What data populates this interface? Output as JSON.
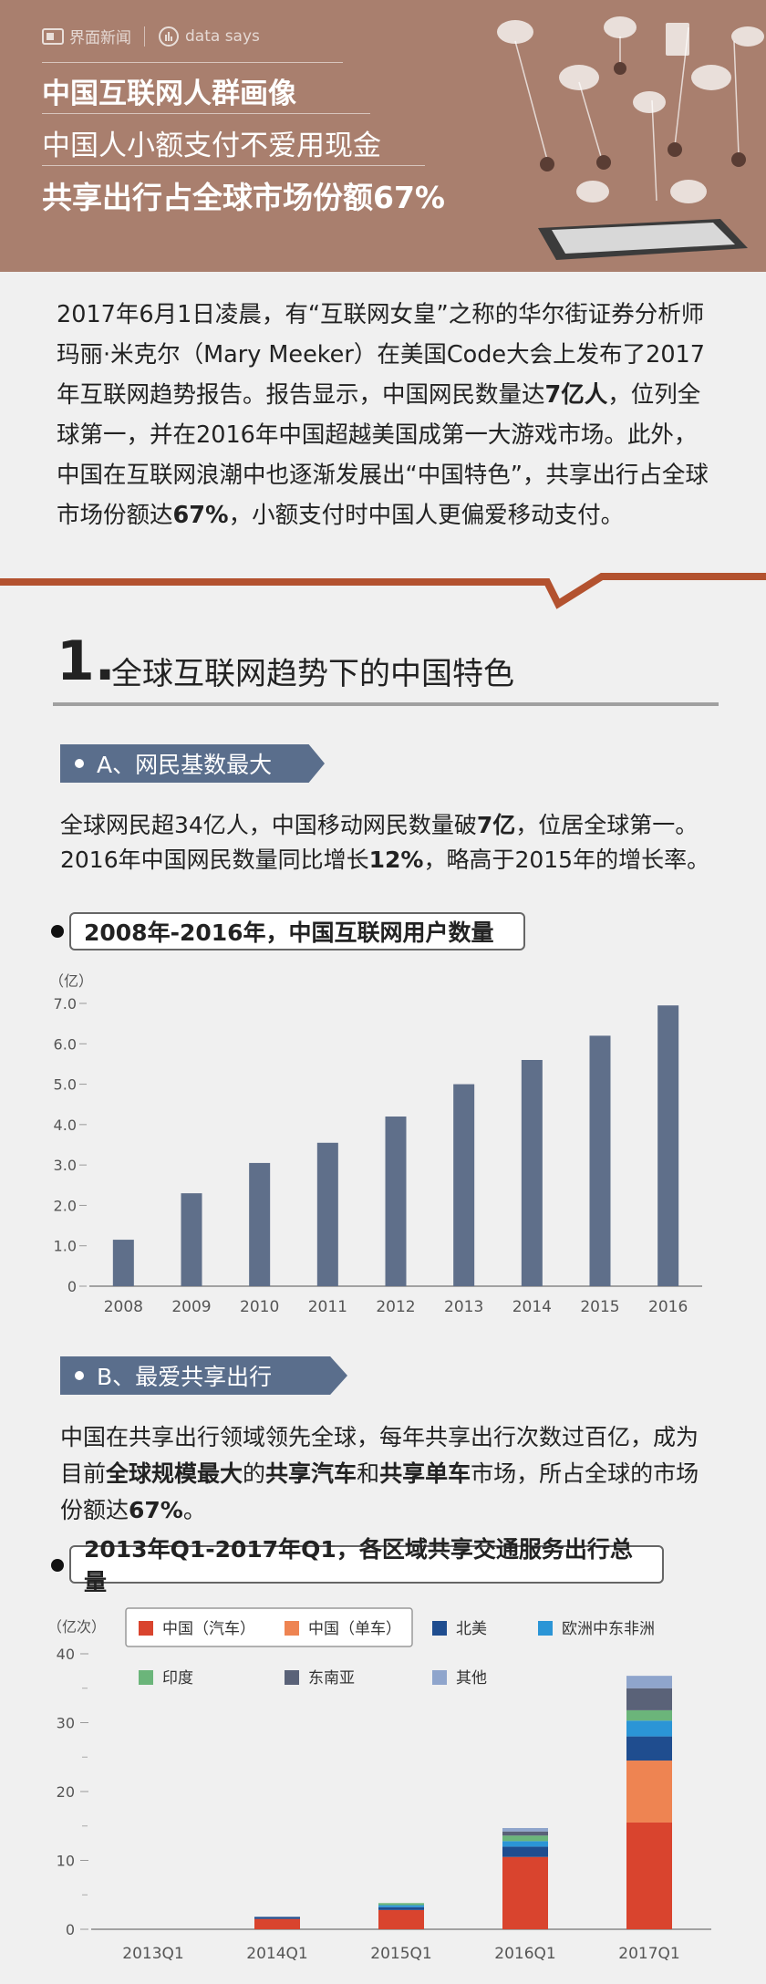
{
  "header": {
    "logo_text": "界面新闻",
    "logo2_text": "data says",
    "line1": "中国互联网人群画像",
    "line2": "中国人小额支付不爱用现金",
    "line3": "共享出行占全球市场份额67%"
  },
  "intro": {
    "p1": "2017年6月1日凌晨，有“互联网女皇”之称的华尔街证券分析师玛丽·米克尔（Mary Meeker）在美国Code大会上发布了2017年互联网趋势报告。报告显示，中国网民数量达",
    "b1": "7亿人",
    "p2": "，位列全球第一，并在2016年中国超越美国成第一大游戏市场。此外，中国在互联网浪潮中也逐渐发展出“中国特色”，共享出行占全球市场份额达",
    "b2": "67%",
    "p3": "，小额支付时中国人更偏爱移动支付。"
  },
  "section1": {
    "number": "1.",
    "title": "全球互联网趋势下的中国特色"
  },
  "partA": {
    "tag": "A、网民基数最大",
    "t1": "全球网民超34亿人，中国移动网民数量破",
    "b1": "7亿",
    "t2": "，位居全球第一。2016年中国网民数量同比增长",
    "b2": "12%",
    "t3": "，略高于2015年的增长率。"
  },
  "partB": {
    "tag": "B、最爱共享出行",
    "t1": "中国在共享出行领域领先全球，每年共享出行次数过百亿，成为目前",
    "b1": "全球规模最大",
    "t2": "的",
    "b2": "共享汽车",
    "t3": "和",
    "b3": "共享单车",
    "t4": "市场，所占全球的市场份额达",
    "b4": "67%",
    "t5": "。"
  },
  "chart_data": [
    {
      "type": "bar",
      "title": "2008年-2016年，中国互联网用户数量",
      "ylabel": "（亿）",
      "categories": [
        "2008",
        "2009",
        "2010",
        "2011",
        "2012",
        "2013",
        "2014",
        "2015",
        "2016"
      ],
      "values": [
        1.15,
        2.3,
        3.05,
        3.55,
        4.2,
        5.0,
        5.6,
        6.2,
        6.95
      ],
      "ylim": [
        0,
        7
      ],
      "yticks": [
        "0",
        "1.0",
        "2.0",
        "3.0",
        "4.0",
        "5.0",
        "6.0",
        "7.0"
      ],
      "color": "#5f6f8a"
    },
    {
      "type": "bar",
      "stacked": true,
      "title": "2013年Q1-2017年Q1，各区域共享交通服务出行总量",
      "ylabel": "（亿次）",
      "categories": [
        "2013Q1",
        "2014Q1",
        "2015Q1",
        "2016Q1",
        "2017Q1"
      ],
      "ylim": [
        0,
        40
      ],
      "yticks": [
        "0",
        "10",
        "20",
        "30",
        "40"
      ],
      "series": [
        {
          "name": "中国（汽车）",
          "color": "#d9442e",
          "values": [
            0,
            1.5,
            2.8,
            10.5,
            15.5
          ]
        },
        {
          "name": "中国（单车）",
          "color": "#ee8452",
          "values": [
            0,
            0,
            0,
            0,
            9
          ]
        },
        {
          "name": "北美",
          "color": "#1f4d8f",
          "values": [
            0,
            0.3,
            0.4,
            1.5,
            3.5
          ]
        },
        {
          "name": "欧洲中东非洲",
          "color": "#2b95d6",
          "values": [
            0,
            0,
            0.3,
            0.8,
            2.3
          ]
        },
        {
          "name": "印度",
          "color": "#6bb57a",
          "values": [
            0,
            0,
            0.3,
            0.8,
            1.5
          ]
        },
        {
          "name": "东南亚",
          "color": "#5a6278",
          "values": [
            0,
            0,
            0,
            0.6,
            3.2
          ]
        },
        {
          "name": "其他",
          "color": "#8fa5cc",
          "values": [
            0,
            0,
            0,
            0.5,
            1.8
          ]
        }
      ]
    }
  ]
}
